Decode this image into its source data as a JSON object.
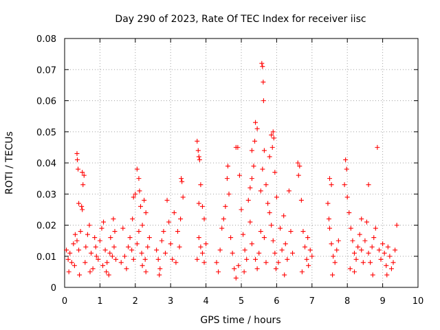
{
  "chart_data": {
    "type": "scatter",
    "title": "Day 290 of 2023, Rate Of TEC Index for receiver iisc",
    "xlabel": "GPS time / hours",
    "ylabel": "ROTI / TECUs",
    "xlim": [
      0,
      10
    ],
    "ylim": [
      0,
      0.08
    ],
    "xticks": [
      0,
      1,
      2,
      3,
      4,
      5,
      6,
      7,
      8,
      9,
      10
    ],
    "xtick_labels": [
      "0",
      "1",
      "2",
      "3",
      "4",
      "5",
      "6",
      "7",
      "8",
      "9",
      "10"
    ],
    "yticks": [
      0,
      0.01,
      0.02,
      0.03,
      0.04,
      0.05,
      0.06,
      0.07,
      0.08
    ],
    "ytick_labels": [
      "0",
      "0.01",
      "0.02",
      "0.03",
      "0.04",
      "0.05",
      "0.06",
      "0.07",
      "0.08"
    ],
    "grid": true,
    "marker": "plus",
    "series_color": "#ff0000",
    "series": [
      {
        "name": "ROTI",
        "points": [
          [
            0.35,
            0.043
          ],
          [
            0.36,
            0.041
          ],
          [
            0.38,
            0.038
          ],
          [
            0.5,
            0.037
          ],
          [
            0.55,
            0.036
          ],
          [
            0.52,
            0.033
          ],
          [
            0.4,
            0.027
          ],
          [
            0.48,
            0.026
          ],
          [
            0.5,
            0.025
          ],
          [
            0.05,
            0.012
          ],
          [
            0.1,
            0.009
          ],
          [
            0.15,
            0.011
          ],
          [
            0.2,
            0.008
          ],
          [
            0.25,
            0.014
          ],
          [
            0.3,
            0.017
          ],
          [
            0.35,
            0.015
          ],
          [
            0.4,
            0.012
          ],
          [
            0.45,
            0.018
          ],
          [
            0.6,
            0.013
          ],
          [
            0.65,
            0.017
          ],
          [
            0.7,
            0.02
          ],
          [
            0.75,
            0.011
          ],
          [
            0.8,
            0.006
          ],
          [
            0.85,
            0.016
          ],
          [
            0.9,
            0.01
          ],
          [
            0.95,
            0.009
          ],
          [
            0.12,
            0.005
          ],
          [
            0.28,
            0.007
          ],
          [
            0.42,
            0.004
          ],
          [
            0.58,
            0.008
          ],
          [
            0.72,
            0.005
          ],
          [
            0.88,
            0.013
          ],
          [
            1.0,
            0.015
          ],
          [
            1.05,
            0.019
          ],
          [
            1.1,
            0.021
          ],
          [
            1.15,
            0.012
          ],
          [
            1.2,
            0.008
          ],
          [
            1.25,
            0.004
          ],
          [
            1.3,
            0.016
          ],
          [
            1.35,
            0.01
          ],
          [
            1.4,
            0.013
          ],
          [
            1.45,
            0.009
          ],
          [
            1.08,
            0.007
          ],
          [
            1.18,
            0.005
          ],
          [
            1.28,
            0.011
          ],
          [
            1.38,
            0.022
          ],
          [
            1.42,
            0.018
          ],
          [
            1.6,
            0.008
          ],
          [
            1.7,
            0.01
          ],
          [
            1.8,
            0.013
          ],
          [
            1.85,
            0.016
          ],
          [
            1.9,
            0.012
          ],
          [
            1.95,
            0.009
          ],
          [
            1.75,
            0.006
          ],
          [
            1.65,
            0.019
          ],
          [
            2.05,
            0.038
          ],
          [
            2.1,
            0.035
          ],
          [
            2.12,
            0.031
          ],
          [
            2.0,
            0.03
          ],
          [
            1.95,
            0.029
          ],
          [
            2.15,
            0.026
          ],
          [
            2.25,
            0.028
          ],
          [
            2.3,
            0.024
          ],
          [
            2.2,
            0.02
          ],
          [
            2.1,
            0.018
          ],
          [
            2.05,
            0.014
          ],
          [
            2.18,
            0.011
          ],
          [
            2.28,
            0.009
          ],
          [
            2.35,
            0.013
          ],
          [
            2.4,
            0.016
          ],
          [
            2.2,
            0.007
          ],
          [
            2.3,
            0.005
          ],
          [
            1.92,
            0.022
          ],
          [
            2.6,
            0.012
          ],
          [
            2.65,
            0.009
          ],
          [
            2.7,
            0.006
          ],
          [
            2.75,
            0.015
          ],
          [
            2.8,
            0.018
          ],
          [
            2.85,
            0.011
          ],
          [
            2.9,
            0.028
          ],
          [
            2.95,
            0.021
          ],
          [
            3.0,
            0.014
          ],
          [
            3.05,
            0.009
          ],
          [
            3.1,
            0.024
          ],
          [
            3.2,
            0.018
          ],
          [
            3.25,
            0.013
          ],
          [
            3.3,
            0.035
          ],
          [
            3.32,
            0.034
          ],
          [
            3.35,
            0.029
          ],
          [
            2.68,
            0.004
          ],
          [
            3.15,
            0.008
          ],
          [
            3.28,
            0.022
          ],
          [
            3.75,
            0.047
          ],
          [
            3.78,
            0.044
          ],
          [
            3.8,
            0.042
          ],
          [
            3.82,
            0.041
          ],
          [
            3.85,
            0.033
          ],
          [
            3.8,
            0.027
          ],
          [
            3.9,
            0.026
          ],
          [
            3.95,
            0.022
          ],
          [
            3.8,
            0.016
          ],
          [
            3.85,
            0.013
          ],
          [
            3.9,
            0.011
          ],
          [
            3.95,
            0.008
          ],
          [
            4.0,
            0.014
          ],
          [
            3.75,
            0.009
          ],
          [
            4.3,
            0.008
          ],
          [
            4.4,
            0.012
          ],
          [
            4.45,
            0.019
          ],
          [
            4.5,
            0.022
          ],
          [
            4.55,
            0.026
          ],
          [
            4.6,
            0.035
          ],
          [
            4.62,
            0.039
          ],
          [
            4.65,
            0.03
          ],
          [
            4.7,
            0.016
          ],
          [
            4.75,
            0.011
          ],
          [
            4.8,
            0.006
          ],
          [
            4.85,
            0.045
          ],
          [
            4.9,
            0.045
          ],
          [
            4.95,
            0.036
          ],
          [
            5.0,
            0.025
          ],
          [
            5.05,
            0.017
          ],
          [
            5.1,
            0.012
          ],
          [
            5.15,
            0.009
          ],
          [
            4.85,
            0.003
          ],
          [
            4.92,
            0.007
          ],
          [
            5.08,
            0.005
          ],
          [
            4.35,
            0.005
          ],
          [
            5.25,
            0.032
          ],
          [
            5.3,
            0.035
          ],
          [
            5.35,
            0.039
          ],
          [
            5.38,
            0.047
          ],
          [
            5.4,
            0.053
          ],
          [
            5.45,
            0.051
          ],
          [
            5.3,
            0.044
          ],
          [
            5.2,
            0.028
          ],
          [
            5.25,
            0.021
          ],
          [
            5.3,
            0.014
          ],
          [
            5.4,
            0.009
          ],
          [
            5.45,
            0.006
          ],
          [
            5.5,
            0.011
          ],
          [
            5.55,
            0.018
          ],
          [
            5.58,
            0.072
          ],
          [
            5.6,
            0.071
          ],
          [
            5.62,
            0.066
          ],
          [
            5.63,
            0.06
          ],
          [
            5.65,
            0.044
          ],
          [
            5.6,
            0.038
          ],
          [
            5.7,
            0.033
          ],
          [
            5.75,
            0.027
          ],
          [
            5.8,
            0.024
          ],
          [
            5.55,
            0.031
          ],
          [
            5.65,
            0.016
          ],
          [
            5.7,
            0.008
          ],
          [
            5.8,
            0.042
          ],
          [
            5.85,
            0.049
          ],
          [
            5.9,
            0.05
          ],
          [
            5.92,
            0.048
          ],
          [
            5.88,
            0.045
          ],
          [
            5.95,
            0.037
          ],
          [
            6.0,
            0.029
          ],
          [
            5.85,
            0.02
          ],
          [
            5.9,
            0.015
          ],
          [
            5.95,
            0.011
          ],
          [
            6.05,
            0.008
          ],
          [
            6.1,
            0.019
          ],
          [
            6.15,
            0.012
          ],
          [
            6.2,
            0.023
          ],
          [
            6.25,
            0.014
          ],
          [
            6.3,
            0.009
          ],
          [
            6.35,
            0.031
          ],
          [
            6.4,
            0.018
          ],
          [
            6.45,
            0.011
          ],
          [
            5.98,
            0.006
          ],
          [
            6.22,
            0.004
          ],
          [
            6.6,
            0.04
          ],
          [
            6.65,
            0.039
          ],
          [
            6.62,
            0.036
          ],
          [
            6.7,
            0.028
          ],
          [
            6.75,
            0.018
          ],
          [
            6.8,
            0.013
          ],
          [
            6.85,
            0.009
          ],
          [
            6.9,
            0.007
          ],
          [
            6.95,
            0.012
          ],
          [
            7.0,
            0.01
          ],
          [
            6.72,
            0.005
          ],
          [
            6.88,
            0.016
          ],
          [
            7.5,
            0.035
          ],
          [
            7.55,
            0.033
          ],
          [
            7.45,
            0.027
          ],
          [
            7.5,
            0.019
          ],
          [
            7.55,
            0.014
          ],
          [
            7.6,
            0.01
          ],
          [
            7.65,
            0.008
          ],
          [
            7.7,
            0.012
          ],
          [
            7.75,
            0.015
          ],
          [
            7.58,
            0.004
          ],
          [
            7.48,
            0.022
          ],
          [
            7.95,
            0.041
          ],
          [
            7.98,
            0.038
          ],
          [
            7.92,
            0.033
          ],
          [
            8.0,
            0.029
          ],
          [
            8.05,
            0.024
          ],
          [
            8.1,
            0.019
          ],
          [
            8.15,
            0.015
          ],
          [
            8.2,
            0.011
          ],
          [
            8.25,
            0.009
          ],
          [
            8.3,
            0.013
          ],
          [
            8.35,
            0.017
          ],
          [
            8.4,
            0.012
          ],
          [
            8.45,
            0.008
          ],
          [
            8.5,
            0.015
          ],
          [
            8.55,
            0.021
          ],
          [
            8.6,
            0.011
          ],
          [
            8.65,
            0.008
          ],
          [
            8.7,
            0.013
          ],
          [
            8.75,
            0.016
          ],
          [
            8.8,
            0.019
          ],
          [
            8.85,
            0.045
          ],
          [
            8.9,
            0.012
          ],
          [
            8.95,
            0.009
          ],
          [
            9.0,
            0.014
          ],
          [
            9.05,
            0.011
          ],
          [
            9.1,
            0.007
          ],
          [
            9.15,
            0.013
          ],
          [
            9.2,
            0.01
          ],
          [
            9.25,
            0.006
          ],
          [
            9.3,
            0.008
          ],
          [
            9.35,
            0.012
          ],
          [
            9.4,
            0.02
          ],
          [
            8.6,
            0.033
          ],
          [
            8.2,
            0.005
          ],
          [
            8.72,
            0.004
          ],
          [
            9.12,
            0.004
          ],
          [
            8.08,
            0.006
          ],
          [
            8.4,
            0.022
          ]
        ]
      }
    ]
  }
}
